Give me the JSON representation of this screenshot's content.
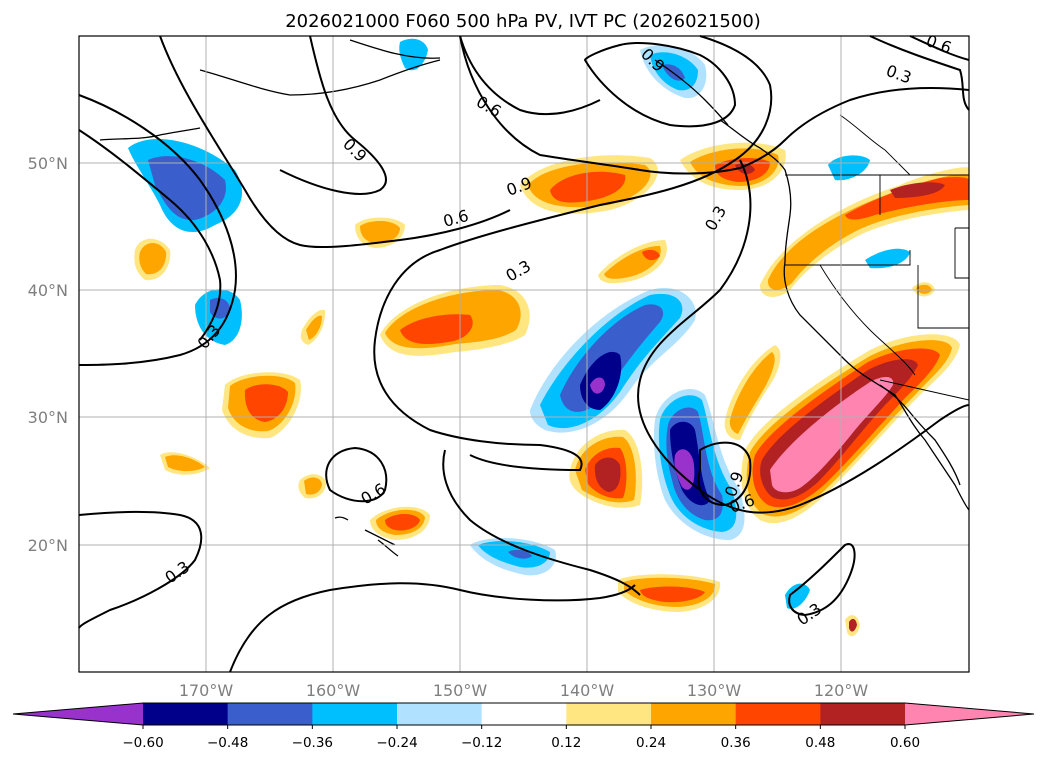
{
  "title": "2026021000 F060 500 hPa PV, IVT PC (2026021500)",
  "map": {
    "lat_labels": [
      "50°N",
      "40°N",
      "30°N",
      "20°N"
    ],
    "lon_labels": [
      "170°W",
      "160°W",
      "150°W",
      "140°W",
      "130°W",
      "120°W"
    ],
    "extent": {
      "lon_min": -180,
      "lon_max": -110,
      "lat_min": 10,
      "lat_max": 60
    }
  },
  "colorbar": {
    "tick_labels": [
      "−0.60",
      "−0.48",
      "−0.36",
      "−0.24",
      "−0.12",
      "0.12",
      "0.24",
      "0.36",
      "0.48",
      "0.60"
    ],
    "colors": [
      "#9932cc",
      "#00008b",
      "#3a5fcd",
      "#00bfff",
      "#b0e2ff",
      "#ffffff",
      "#ffe680",
      "#ffa500",
      "#ff4500",
      "#b22222",
      "#ff85b0"
    ]
  },
  "contours": {
    "labels": [
      "0.3",
      "0.6",
      "0.9"
    ]
  }
}
